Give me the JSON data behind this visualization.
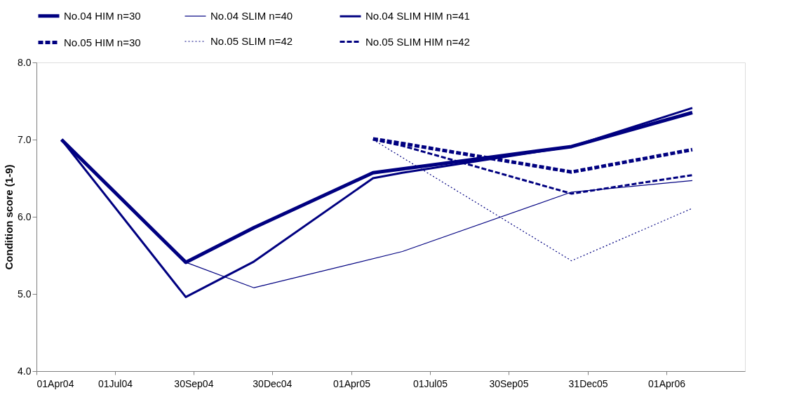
{
  "chart_data": {
    "type": "line",
    "ylabel": "Condition score (1-9)",
    "xlim": [
      "2004-04-01",
      "2006-07-01"
    ],
    "xticks": [
      {
        "value": "2004-04-01",
        "label": "01Apr04"
      },
      {
        "value": "2004-07-01",
        "label": "01Jul04"
      },
      {
        "value": "2004-09-30",
        "label": "30Sep04"
      },
      {
        "value": "2004-12-30",
        "label": "30Dec04"
      },
      {
        "value": "2005-04-01",
        "label": "01Apr05"
      },
      {
        "value": "2005-07-01",
        "label": "01Jul05"
      },
      {
        "value": "2005-09-30",
        "label": "30Sep05"
      },
      {
        "value": "2005-12-31",
        "label": "31Dec05"
      },
      {
        "value": "2006-04-01",
        "label": "01Apr06"
      }
    ],
    "ylim": [
      4,
      8
    ],
    "yticks": [
      {
        "value": 4,
        "label": "4.0"
      },
      {
        "value": 5,
        "label": "5.0"
      },
      {
        "value": 6,
        "label": "6.0"
      },
      {
        "value": 7,
        "label": "7.0"
      },
      {
        "value": 8,
        "label": "8.0"
      }
    ],
    "grid": false,
    "legend": "top",
    "marker": "none",
    "series": [
      {
        "name": "No.04 HIM n=30",
        "color": "#000080",
        "line_style": "solid",
        "x": [
          "2004-04-30",
          "2004-09-21",
          "2004-12-09",
          "2005-04-26",
          "2005-05-30",
          "2005-12-12",
          "2006-05-01"
        ],
        "values": [
          7.0,
          5.41,
          5.86,
          6.57,
          6.62,
          6.91,
          7.35
        ]
      },
      {
        "name": "No.04 SLIM n=40",
        "color": "#000080",
        "line_style": "solid",
        "x": [
          "2004-04-30",
          "2004-09-21",
          "2004-12-09",
          "2005-05-30",
          "2005-12-12",
          "2006-05-01"
        ],
        "values": [
          7.0,
          5.41,
          5.08,
          5.55,
          6.32,
          6.47
        ]
      },
      {
        "name": "No.04 SLIM HIM n=41",
        "color": "#000080",
        "line_style": "solid",
        "x": [
          "2004-04-30",
          "2004-09-21",
          "2004-12-09",
          "2005-04-26",
          "2005-05-30",
          "2005-12-12",
          "2006-05-01"
        ],
        "values": [
          7.0,
          4.96,
          5.42,
          6.5,
          6.57,
          6.91,
          7.41
        ]
      },
      {
        "name": "No.05 HIM n=30",
        "color": "#000080",
        "line_style": "dashed",
        "x": [
          "2005-04-26",
          "2005-05-30",
          "2005-12-12",
          "2006-05-01"
        ],
        "values": [
          7.01,
          6.95,
          6.58,
          6.87
        ]
      },
      {
        "name": "No.05 SLIM n=42",
        "color": "#000080",
        "line_style": "dotted",
        "x": [
          "2005-04-26",
          "2005-12-12",
          "2006-05-01"
        ],
        "values": [
          7.0,
          5.43,
          6.11
        ]
      },
      {
        "name": "No.05 SLIM HIM n=42",
        "color": "#000080",
        "line_style": "dashed",
        "x": [
          "2005-04-26",
          "2005-05-30",
          "2005-12-12",
          "2006-05-01"
        ],
        "values": [
          7.0,
          6.92,
          6.3,
          6.54
        ]
      }
    ]
  }
}
